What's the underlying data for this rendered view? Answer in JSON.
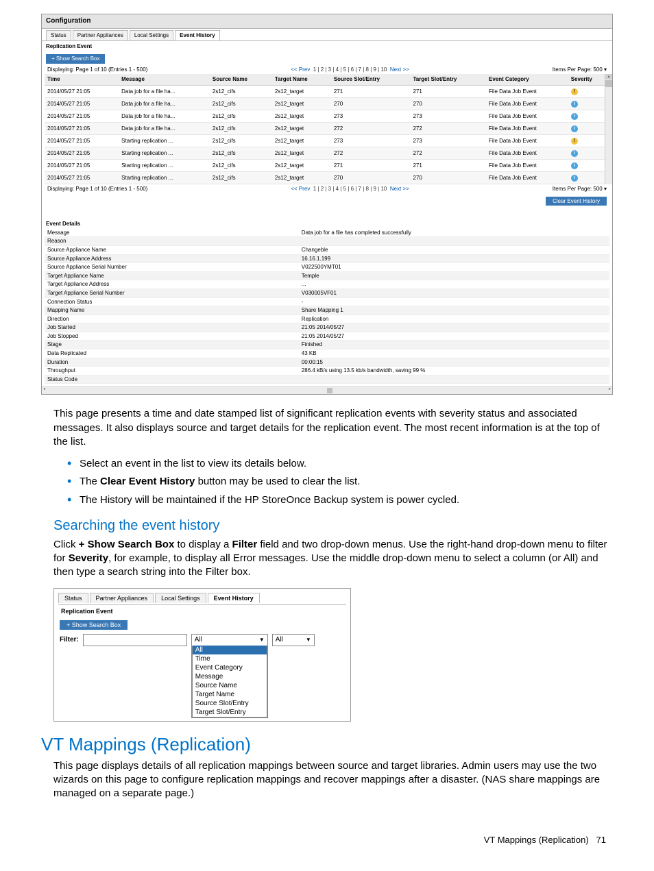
{
  "scr1": {
    "title": "Configuration",
    "tabs": [
      "Status",
      "Partner Appliances",
      "Local Settings",
      "Event History"
    ],
    "active_tab": "Event History",
    "subtab": "Replication Event",
    "search_btn": "+ Show Search Box",
    "page_label": "Displaying: Page 1 of 10 (Entries 1 - 500)",
    "prev_label": "<< Prev",
    "next_label": "Next >>",
    "page_links": "1 | 2 | 3 | 4 | 5 | 6 | 7 | 8 | 9 | 10",
    "ipp_label": "Items Per Page:",
    "ipp_value": "500",
    "columns": [
      "Time",
      "Message",
      "Source Name",
      "Target Name",
      "Source Slot/Entry",
      "Target Slot/Entry",
      "Event Category",
      "Severity"
    ],
    "rows": [
      {
        "time": "2014/05/27 21:05",
        "msg": "Data job for a file ha...",
        "src": "2s12_cifs",
        "tgt": "2s12_target",
        "sse": "271",
        "tse": "271",
        "cat": "File Data Job Event",
        "sev": "warn"
      },
      {
        "time": "2014/05/27 21:05",
        "msg": "Data job for a file ha...",
        "src": "2s12_cifs",
        "tgt": "2s12_target",
        "sse": "270",
        "tse": "270",
        "cat": "File Data Job Event",
        "sev": "info"
      },
      {
        "time": "2014/05/27 21:05",
        "msg": "Data job for a file ha...",
        "src": "2s12_cifs",
        "tgt": "2s12_target",
        "sse": "273",
        "tse": "273",
        "cat": "File Data Job Event",
        "sev": "info"
      },
      {
        "time": "2014/05/27 21:05",
        "msg": "Data job for a file ha...",
        "src": "2s12_cifs",
        "tgt": "2s12_target",
        "sse": "272",
        "tse": "272",
        "cat": "File Data Job Event",
        "sev": "info"
      },
      {
        "time": "2014/05/27 21:05",
        "msg": "Starting replication ...",
        "src": "2s12_cifs",
        "tgt": "2s12_target",
        "sse": "273",
        "tse": "273",
        "cat": "File Data Job Event",
        "sev": "warn"
      },
      {
        "time": "2014/05/27 21:05",
        "msg": "Starting replication ...",
        "src": "2s12_cifs",
        "tgt": "2s12_target",
        "sse": "272",
        "tse": "272",
        "cat": "File Data Job Event",
        "sev": "info"
      },
      {
        "time": "2014/05/27 21:05",
        "msg": "Starting replication ...",
        "src": "2s12_cifs",
        "tgt": "2s12_target",
        "sse": "271",
        "tse": "271",
        "cat": "File Data Job Event",
        "sev": "info"
      },
      {
        "time": "2014/05/27 21:05",
        "msg": "Starting replication ...",
        "src": "2s12_cifs",
        "tgt": "2s12_target",
        "sse": "270",
        "tse": "270",
        "cat": "File Data Job Event",
        "sev": "info"
      }
    ],
    "clear_btn": "Clear Event History",
    "event_details_label": "Event Details",
    "details": [
      {
        "k": "Message",
        "v": "Data job for a file has completed successfully"
      },
      {
        "k": "Reason",
        "v": ""
      },
      {
        "k": "Source Appliance Name",
        "v": "Changeble"
      },
      {
        "k": "Source Appliance Address",
        "v": "16.16.1.199"
      },
      {
        "k": "Source Appliance Serial Number",
        "v": "V022500YMT01"
      },
      {
        "k": "Target Appliance Name",
        "v": "Temple"
      },
      {
        "k": "Target Appliance Address",
        "v": "..."
      },
      {
        "k": "Target Appliance Serial Number",
        "v": "V030005VF01"
      },
      {
        "k": "Connection Status",
        "v": "-"
      },
      {
        "k": "Mapping Name",
        "v": "Share Mapping 1"
      },
      {
        "k": "Direction",
        "v": "Replication"
      },
      {
        "k": "Job Started",
        "v": "21:05 2014/05/27"
      },
      {
        "k": "Job Stopped",
        "v": "21:05 2014/05/27"
      },
      {
        "k": "Stage",
        "v": "Finished"
      },
      {
        "k": "Data Replicated",
        "v": "43 KB"
      },
      {
        "k": "Duration",
        "v": "00:00:15"
      },
      {
        "k": "Throughput",
        "v": "286.4 kB/s using 13.5 kb/s bandwidth, saving 99 %"
      },
      {
        "k": "Status Code",
        "v": ""
      }
    ]
  },
  "body": {
    "p1": "This page presents a time and date stamped list of significant replication events with severity status and associated messages. It also displays source and target details for the replication event. The most recent information is at the top of the list.",
    "b1": "Select an event in the list to view its details below.",
    "b2a": "The ",
    "b2b": "Clear Event History",
    "b2c": " button may be used to clear the list.",
    "b3": "The History will be maintained if the HP StoreOnce Backup system is power cycled.",
    "h3": "Searching the event history",
    "p2a": "Click ",
    "p2b": "+ Show Search Box",
    "p2c": " to display a ",
    "p2d": "Filter",
    "p2e": " field and two drop-down menus. Use the right-hand drop-down menu to filter for ",
    "p2f": "Severity",
    "p2g": ", for example, to display all Error messages. Use the middle drop-down menu to select a column (or All) and then type a search string into the Filter box.",
    "h2": "VT Mappings (Replication)",
    "p3": "This page displays details of all replication mappings between source and target libraries. Admin users may use the two wizards on this page to configure replication mappings and recover mappings after a disaster. (NAS share mappings are managed on a separate page.)"
  },
  "scr2": {
    "tabs": [
      "Status",
      "Partner Appliances",
      "Local Settings",
      "Event History"
    ],
    "active_tab": "Event History",
    "subtab": "Replication Event",
    "search_btn": "+ Show Search Box",
    "filter_label": "Filter:",
    "select1_value": "All",
    "select2_value": "All",
    "options": [
      "All",
      "Time",
      "Event Category",
      "Message",
      "Source Name",
      "Target Name",
      "Source Slot/Entry",
      "Target Slot/Entry"
    ]
  },
  "footer": {
    "text": "VT Mappings (Replication)",
    "page": "71"
  }
}
